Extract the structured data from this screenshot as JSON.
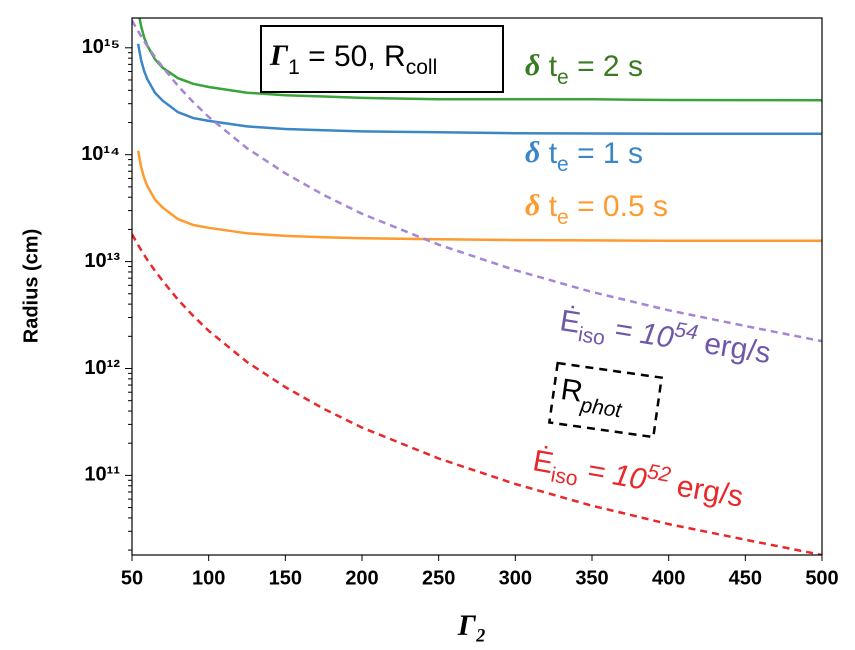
{
  "chart_data": {
    "type": "line",
    "y_label": "Radius (cm)",
    "x_label": "Γ₂",
    "log_y": true,
    "x": [
      50,
      52,
      54,
      56,
      58,
      60,
      65,
      70,
      80,
      90,
      100,
      125,
      150,
      175,
      200,
      250,
      300,
      350,
      400,
      450,
      500
    ],
    "xlim": [
      50,
      500
    ],
    "xticks": [
      50,
      100,
      150,
      200,
      250,
      300,
      350,
      400,
      450,
      500
    ],
    "ylim": [
      18000000000.0,
      1900000000000000.0
    ],
    "yticks": [
      {
        "value": 100000000000.0,
        "label": "10¹¹"
      },
      {
        "value": 1000000000000.0,
        "label": "10¹²"
      },
      {
        "value": 10000000000000.0,
        "label": "10¹³"
      },
      {
        "value": 100000000000000.0,
        "label": "10¹⁴"
      },
      {
        "value": 1000000000000000.0,
        "label": "10¹⁵"
      }
    ],
    "series": [
      {
        "color": "#3aa33a",
        "dash": false,
        "values": [
          null,
          null,
          2240000000000000.0,
          1580000000000000.0,
          1240000000000000.0,
          1050000000000000.0,
          780000000000000.0,
          650000000000000.0,
          520000000000000.0,
          460000000000000.0,
          430000000000000.0,
          380000000000000.0,
          360000000000000.0,
          350000000000000.0,
          340000000000000.0,
          330000000000000.0,
          330000000000000.0,
          330000000000000.0,
          325000000000000.0,
          324000000000000.0,
          323000000000000.0
        ]
      },
      {
        "color": "#3a87c8",
        "dash": false,
        "values": [
          null,
          null,
          1090000000000000.0,
          760000000000000.0,
          600000000000000.0,
          510000000000000.0,
          380000000000000.0,
          320000000000000.0,
          250000000000000.0,
          220000000000000.0,
          207000000000000.0,
          184000000000000.0,
          174000000000000.0,
          169000000000000.0,
          165000000000000.0,
          162000000000000.0,
          159000000000000.0,
          158000000000000.0,
          157000000000000.0,
          157000000000000.0,
          157000000000000.0
        ]
      },
      {
        "color": "#ff9a2e",
        "dash": false,
        "values": [
          null,
          null,
          109000000000000.0,
          76000000000000.0,
          60000000000000.0,
          51000000000000.0,
          38000000000000.0,
          32000000000000.0,
          25000000000000.0,
          22000000000000.0,
          20700000000000.0,
          18400000000000.0,
          17400000000000.0,
          16900000000000.0,
          16500000000000.0,
          16200000000000.0,
          15900000000000.0,
          15800000000000.0,
          15700000000000.0,
          15700000000000.0,
          15700000000000.0
        ]
      },
      {
        "color": "#a785d4",
        "dash": true,
        "values": [
          1800000000000000.0,
          1600000000000000.0,
          1430000000000000.0,
          1280000000000000.0,
          1150000000000000.0,
          1040000000000000.0,
          820000000000000.0,
          660000000000000.0,
          440000000000000.0,
          310000000000000.0,
          225000000000000.0,
          115000000000000.0,
          67000000000000.0,
          42000000000000.0,
          28000000000000.0,
          14400000000000.0,
          8300000000000.0,
          5200000000000.0,
          3500000000000.0,
          2500000000000.0,
          1800000000000.0
        ]
      },
      {
        "color": "#e8282a",
        "dash": true,
        "values": [
          18000000000000.0,
          16000000000000.0,
          14300000000000.0,
          12800000000000.0,
          11500000000000.0,
          10400000000000.0,
          8200000000000.0,
          6600000000000.0,
          4400000000000.0,
          3100000000000.0,
          2250000000000.0,
          1150000000000.0,
          670000000000.0,
          420000000000.0,
          280000000000.0,
          144000000000.0,
          83000000000.0,
          52000000000.0,
          35000000000.0,
          25000000000.0,
          18000000000.0
        ]
      }
    ],
    "annotations": [
      [
        "Γ",
        "1",
        " = 50, R",
        "coll"
      ],
      [
        "δ",
        " t",
        "e",
        " = 2 s"
      ],
      [
        "δ",
        " t",
        "e",
        " = 1 s"
      ],
      [
        "δ",
        " t",
        "e",
        " = 0.5 s"
      ],
      [
        "Ė",
        "iso",
        " = 10",
        "54",
        " erg/s"
      ],
      [
        "R",
        "phot"
      ],
      [
        "Ė",
        "iso",
        " = 10",
        "52",
        " erg/s"
      ]
    ]
  }
}
